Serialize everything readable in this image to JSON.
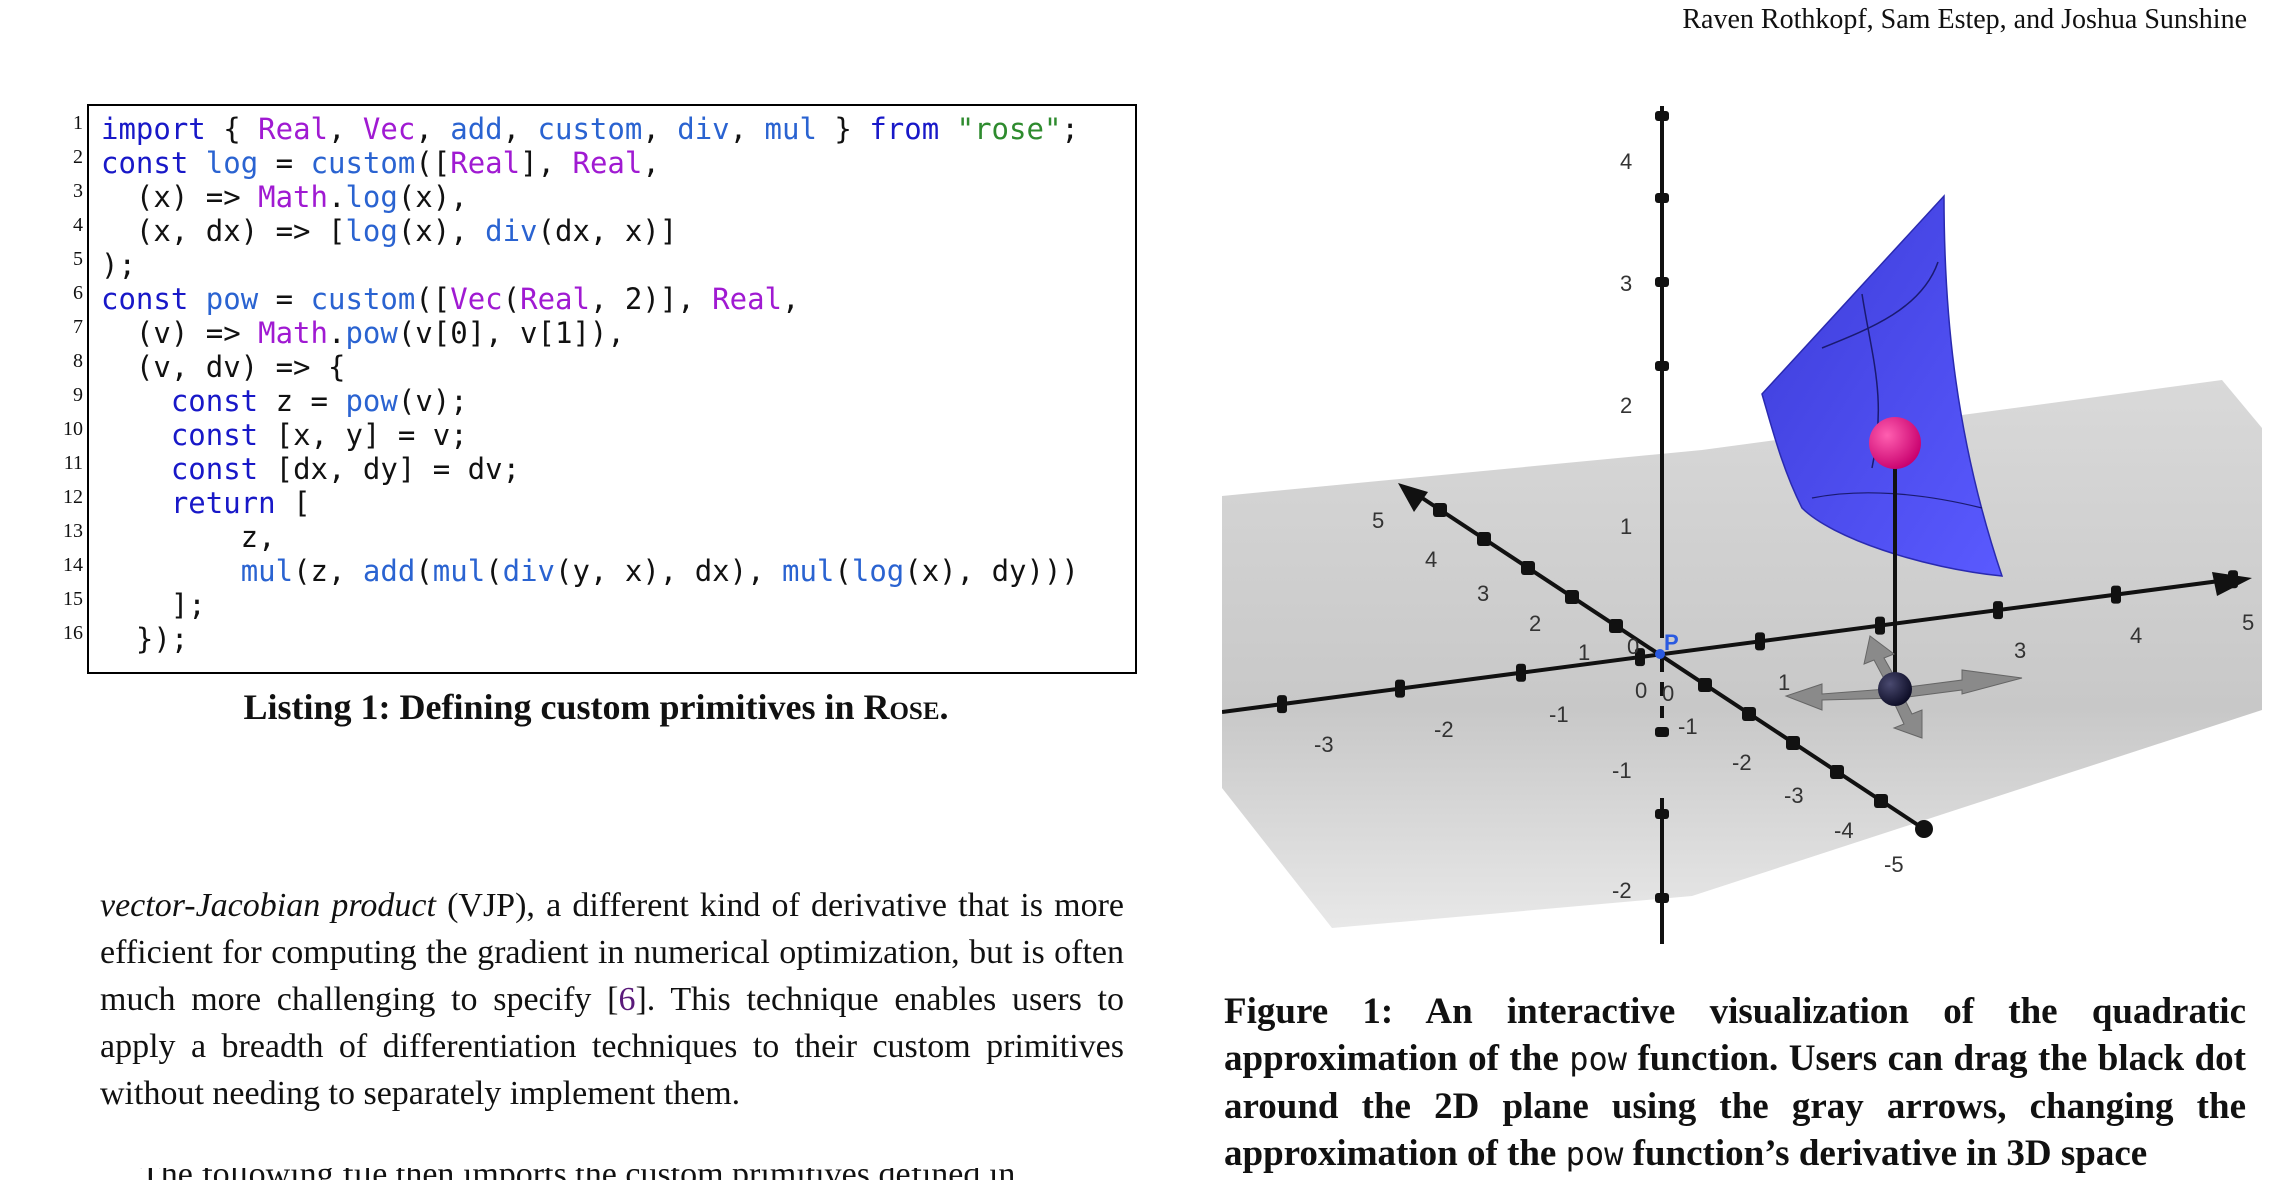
{
  "header": {
    "authors": "Raven Rothkopf, Sam Estep, and Joshua Sunshine"
  },
  "listing": {
    "line_numbers": [
      "1",
      "2",
      "3",
      "4",
      "5",
      "6",
      "7",
      "8",
      "9",
      "10",
      "11",
      "12",
      "13",
      "14",
      "15",
      "16"
    ],
    "caption_prefix": "Listing 1: Defining custom primitives in ",
    "caption_name": "Rose",
    "caption_suffix": ".",
    "code": {
      "l1": {
        "import": "import",
        "brace_open": " { ",
        "Real": "Real",
        "c1": ", ",
        "Vec": "Vec",
        "c2": ", ",
        "add": "add",
        "c3": ", ",
        "custom": "custom",
        "c4": ", ",
        "div": "div",
        "c5": ", ",
        "mul": "mul",
        "brace_close": " } ",
        "from": "from",
        "sp": " ",
        "rose": "\"rose\"",
        "semi": ";"
      },
      "l2": {
        "const": "const",
        "sp": " ",
        "log": "log",
        "eq": " = ",
        "custom": "custom",
        "open": "([",
        "Real1": "Real",
        "mid": "], ",
        "Real2": "Real",
        "end": ","
      },
      "l3": {
        "pre": "  (x) => ",
        "Math": "Math",
        "dot": ".",
        "log": "log",
        "end": "(x),"
      },
      "l4": {
        "pre": "  (x, dx) => [",
        "log": "log",
        "mid": "(x), ",
        "div": "div",
        "end": "(dx, x)]"
      },
      "l5": {
        "text": ");"
      },
      "l6": {
        "const": "const",
        "sp": " ",
        "pow": "pow",
        "eq": " = ",
        "custom": "custom",
        "open": "([",
        "Vec": "Vec",
        "p": "(",
        "Real1": "Real",
        "mid": ", 2)], ",
        "Real2": "Real",
        "end": ","
      },
      "l7": {
        "pre": "  (v) => ",
        "Math": "Math",
        "dot": ".",
        "pow": "pow",
        "end": "(v[0], v[1]),"
      },
      "l8": {
        "text": "  (v, dv) => {"
      },
      "l9": {
        "pre": "    ",
        "const": "const",
        "mid": " z = ",
        "pow": "pow",
        "end": "(v);"
      },
      "l10": {
        "pre": "    ",
        "const": "const",
        "end": " [x, y] = v;"
      },
      "l11": {
        "pre": "    ",
        "const": "const",
        "end": " [dx, dy] = dv;"
      },
      "l12": {
        "pre": "    ",
        "return": "return",
        "end": " ["
      },
      "l13": {
        "text": "        z,"
      },
      "l14": {
        "pre": "        ",
        "mul1": "mul",
        "a": "(z, ",
        "add": "add",
        "b": "(",
        "mul2": "mul",
        "c": "(",
        "div": "div",
        "d": "(y, x), dx), ",
        "mul3": "mul",
        "e": "(",
        "log": "log",
        "f": "(x), dy)))"
      },
      "l15": {
        "text": "    ];"
      },
      "l16": {
        "text": "  });"
      }
    }
  },
  "body": {
    "term": "vector-Jacobian product",
    "p1_a": " (VJP), a different kind of derivative that is more efficient for computing the gradient in numerical optimization, but is often much more challenging to specify [",
    "cite": "6",
    "p1_b": "]. This technique enables users to apply a breadth of differentiation techniques to their custom primitives without needing to separately implement them.",
    "next_line": "The following file then imports the custom primitives defined in"
  },
  "figure": {
    "point_label": "P",
    "z_ticks": [
      "4",
      "3",
      "2",
      "1",
      "-1",
      "-2"
    ],
    "x_ticks_pos": [
      "1",
      "3",
      "4",
      "5"
    ],
    "x_ticks_neg": [
      "-1",
      "-2",
      "-3"
    ],
    "y_ticks_pos": [
      "1",
      "2",
      "3",
      "4",
      "5"
    ],
    "y_ticks_neg": [
      "-1",
      "-2",
      "-3",
      "-4",
      "-5"
    ],
    "origin_labels": [
      "0",
      "0",
      "0"
    ],
    "caption_a": "Figure 1: An interactive visualization of the quadratic approximation of the ",
    "caption_pow1": "pow",
    "caption_b": " function. Users can drag the black dot around the 2D plane using the gray arrows, changing the approximation of the ",
    "caption_pow2": "pow",
    "caption_c": " function’s derivative in 3D space"
  }
}
